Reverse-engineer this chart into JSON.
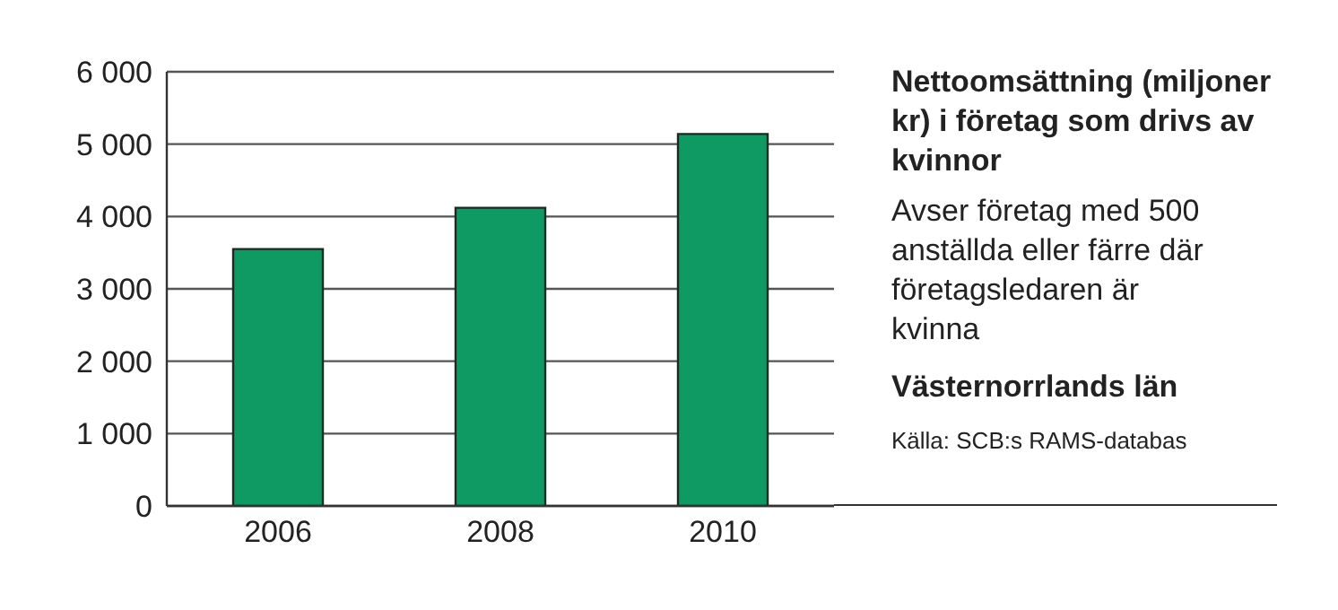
{
  "chart_data": {
    "type": "bar",
    "title": "Nettoomsättning (miljoner kr) i företag som drivs av kvinnor",
    "subtitle": "Avser företag med 500 anställda eller färre där företagsledaren är kvinna",
    "annotations": [
      "Västernorrlands län",
      "Källa: SCB:s RAMS-databas"
    ],
    "categories": [
      "2006",
      "2008",
      "2010"
    ],
    "values": [
      3550,
      4120,
      5140
    ],
    "color": "#0f9a64",
    "ylim": [
      0,
      6000
    ],
    "yticks": [
      {
        "value": 0,
        "label": "0"
      },
      {
        "value": 1000,
        "label": "1 000"
      },
      {
        "value": 2000,
        "label": "2 000"
      },
      {
        "value": 3000,
        "label": "3 000"
      },
      {
        "value": 4000,
        "label": "4 000"
      },
      {
        "value": 5000,
        "label": "5 000"
      },
      {
        "value": 6000,
        "label": "6 000"
      }
    ],
    "grid": "y",
    "legend": false
  }
}
